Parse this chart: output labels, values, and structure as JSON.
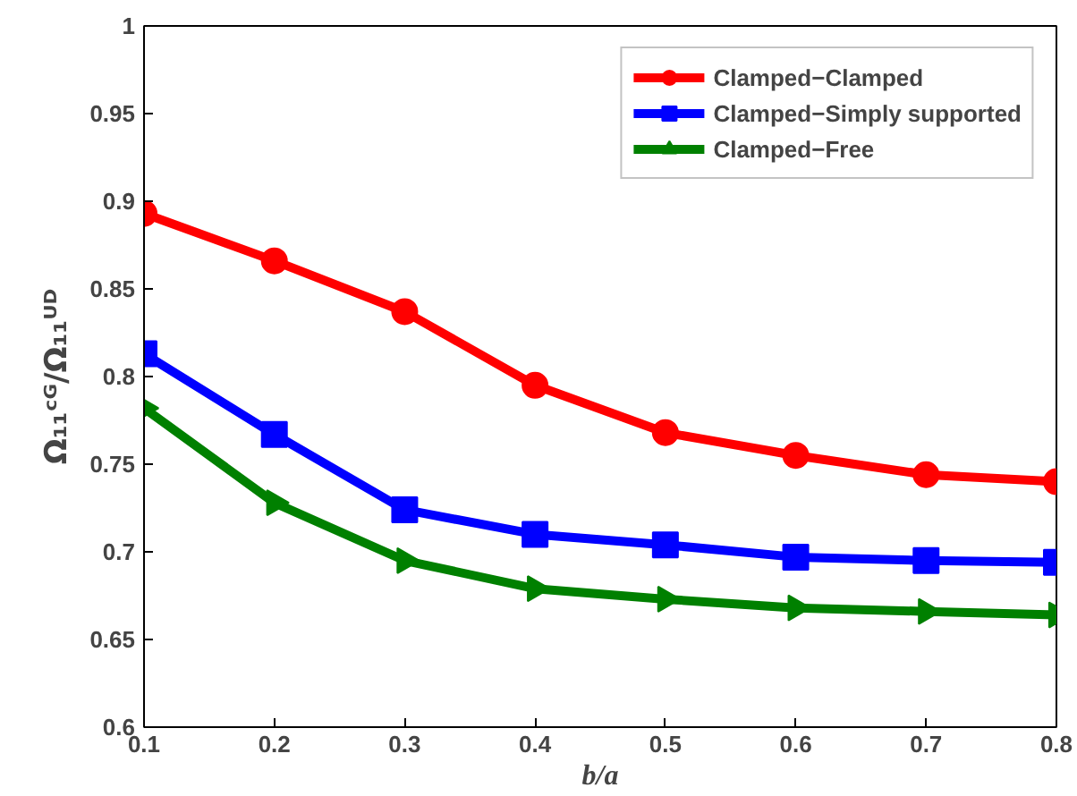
{
  "chart_data": {
    "type": "line",
    "xlabel": "b/a",
    "ylabel": "Ω₁₁ᶜᴳ/Ω₁₁ᵁᴰ",
    "x": [
      0.1,
      0.2,
      0.3,
      0.4,
      0.5,
      0.6,
      0.7,
      0.8
    ],
    "xlim": [
      0.1,
      0.8
    ],
    "xticks": [
      0.1,
      0.2,
      0.3,
      0.4,
      0.5,
      0.6,
      0.7,
      0.8
    ],
    "ylim": [
      0.6,
      1
    ],
    "yticks": [
      0.6,
      0.65,
      0.7,
      0.75,
      0.8,
      0.85,
      0.9,
      0.95,
      1
    ],
    "grid": false,
    "legend": "top right",
    "series": [
      {
        "name": "Clamped−Clamped",
        "color": "#ff0000",
        "marker": "circle",
        "values": [
          0.893,
          0.866,
          0.837,
          0.795,
          0.768,
          0.755,
          0.744,
          0.74
        ]
      },
      {
        "name": "Clamped−Simply supported",
        "color": "#0000ff",
        "marker": "square",
        "values": [
          0.813,
          0.767,
          0.724,
          0.71,
          0.704,
          0.697,
          0.695,
          0.694
        ]
      },
      {
        "name": "Clamped−Free",
        "color": "#008000",
        "marker": "triangle",
        "values": [
          0.782,
          0.728,
          0.695,
          0.679,
          0.673,
          0.668,
          0.666,
          0.664
        ]
      }
    ]
  }
}
